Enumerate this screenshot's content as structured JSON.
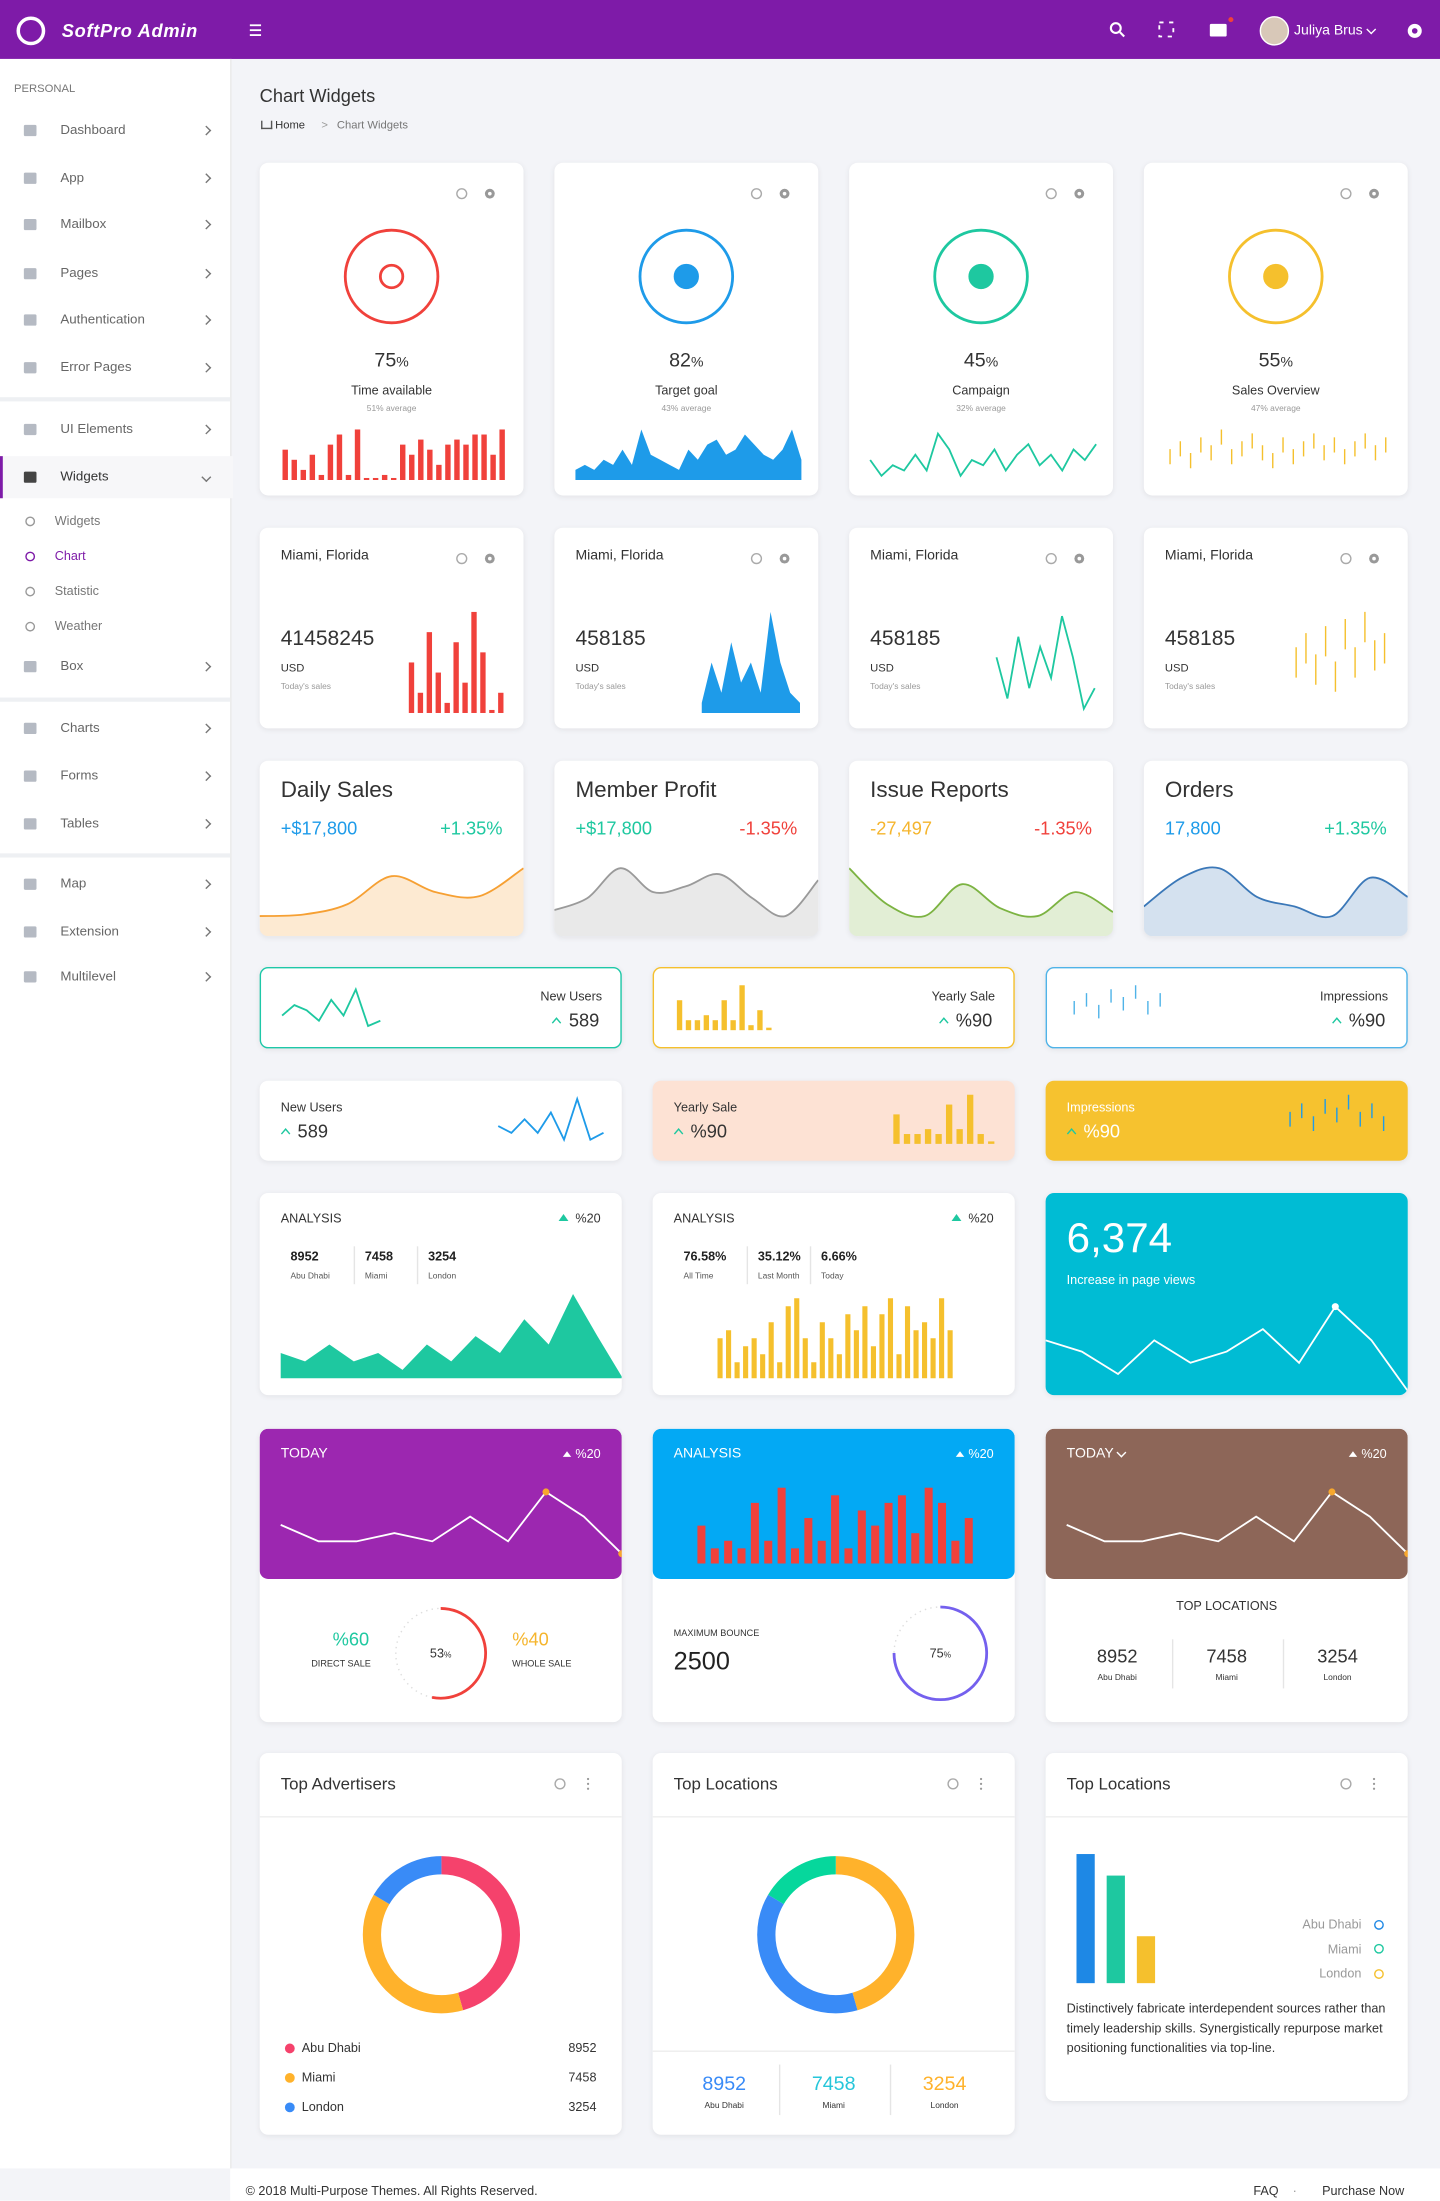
{
  "header": {
    "brand": "SoftPro Admin",
    "user": "Juliya Brus"
  },
  "sidebar": {
    "section": "PERSONAL",
    "items": [
      "Dashboard",
      "App",
      "Mailbox",
      "Pages",
      "Authentication",
      "Error Pages",
      "UI Elements",
      "Widgets",
      "Box",
      "Charts",
      "Forms",
      "Tables",
      "Map",
      "Extension",
      "Multilevel"
    ],
    "subitems": [
      "Widgets",
      "Chart",
      "Statistic",
      "Weather"
    ]
  },
  "page": {
    "title": "Chart Widgets",
    "breadcrumb": {
      "items": [
        "Home",
        "Chart Widgets"
      ],
      "separator": ">"
    }
  },
  "gauges": [
    {
      "value": 75,
      "unit": "%",
      "label": "Time available",
      "note": "51% average",
      "color": "#f0413b",
      "spark": {
        "type": "bar",
        "color": "#f0413b",
        "values": [
          6,
          4,
          2,
          5,
          1,
          7,
          9,
          1,
          10,
          0.4,
          0.4,
          1,
          0.4,
          7,
          5,
          8,
          6,
          3,
          7,
          8,
          7,
          9,
          9,
          5,
          10
        ]
      }
    },
    {
      "value": 82,
      "unit": "%",
      "label": "Target goal",
      "note": "43% average",
      "color": "#1e9be9",
      "spark": {
        "type": "area",
        "color": "#1e9be9",
        "values": [
          2,
          3,
          2,
          4,
          3,
          6,
          3,
          10,
          5,
          4,
          3,
          2,
          6,
          4,
          7,
          8,
          5,
          6,
          9,
          7,
          5,
          4,
          6,
          10,
          4
        ]
      }
    },
    {
      "value": 45,
      "unit": "%",
      "label": "Campaign",
      "note": "32% average",
      "color": "#1ec8a0",
      "spark": {
        "type": "line",
        "color": "#1ec8a0",
        "values": [
          5,
          2,
          4,
          3,
          6,
          3,
          10,
          7,
          2,
          5,
          4,
          7,
          3,
          6,
          8,
          4,
          6,
          3,
          7,
          5,
          8
        ]
      }
    },
    {
      "value": 55,
      "unit": "%",
      "label": "Sales Overview",
      "note": "47% average",
      "color": "#f5c02d",
      "spark": {
        "type": "discrete",
        "color": "#f5c02d",
        "values": [
          4,
          6,
          3,
          7,
          5,
          9,
          4,
          6,
          8,
          5,
          3,
          7,
          4,
          6,
          8,
          5,
          7,
          4,
          6,
          8,
          5,
          7
        ]
      }
    }
  ],
  "sales": [
    {
      "place": "Miami, Florida",
      "value": 41458245,
      "currency": "USD",
      "note": "Today's sales",
      "spark": {
        "type": "bar",
        "color": "#f0413b",
        "values": [
          5,
          2,
          8,
          4,
          1,
          7,
          3,
          10,
          6,
          0.3,
          2
        ]
      }
    },
    {
      "place": "Miami, Florida",
      "value": 458185,
      "currency": "USD",
      "note": "Today's sales",
      "spark": {
        "type": "area",
        "color": "#1e9be9",
        "values": [
          1,
          5,
          2,
          7,
          3,
          5,
          2,
          10,
          5,
          2,
          1
        ]
      }
    },
    {
      "place": "Miami, Florida",
      "value": 458185,
      "currency": "USD",
      "note": "Today's sales",
      "spark": {
        "type": "line",
        "color": "#1ec8a0",
        "values": [
          6,
          2,
          8,
          3,
          7,
          4,
          10,
          6,
          1,
          3
        ]
      }
    },
    {
      "place": "Miami, Florida",
      "value": 458185,
      "currency": "USD",
      "note": "Today's sales",
      "spark": {
        "type": "discrete",
        "color": "#f5c02d",
        "values": [
          5,
          7,
          4,
          8,
          3,
          9,
          5,
          10,
          6,
          7
        ]
      }
    }
  ],
  "summary": [
    {
      "title": "Daily Sales",
      "amount": "+$17,800",
      "change": "+1.35%",
      "amount_color": "#1e9be9",
      "change_color": "#1ec8a0",
      "curve": {
        "type": "curve",
        "color": "#f6a033",
        "values": [
          1,
          1.2,
          2.5,
          6,
          4,
          3.5,
          7
        ]
      }
    },
    {
      "title": "Member Profit",
      "amount": "+$17,800",
      "change": "-1.35%",
      "amount_color": "#1ec8a0",
      "change_color": "#f0413b",
      "curve": {
        "type": "curve",
        "color": "#9a9a9a",
        "values": [
          3,
          4,
          6.5,
          4.5,
          5,
          6,
          4,
          2.5,
          5.5
        ]
      }
    },
    {
      "title": "Issue Reports",
      "amount": "-27,497",
      "change": "-1.35%",
      "amount_color": "#f5b52d",
      "change_color": "#f0413b",
      "curve": {
        "type": "curve",
        "color": "#7cb342",
        "values": [
          7,
          2.5,
          1,
          5,
          2,
          1,
          4,
          1.5
        ]
      }
    },
    {
      "title": "Orders",
      "amount": "17,800",
      "change": "+1.35%",
      "amount_color": "#1e9be9",
      "change_color": "#1ec8a0",
      "curve": {
        "type": "curve",
        "color": "#3b78b8",
        "values": [
          2,
          5,
          6,
          3,
          2,
          1,
          5,
          3
        ]
      }
    }
  ],
  "stats_outline": [
    {
      "label": "New Users",
      "value": 589,
      "color": "#1ec8a8",
      "spark": {
        "type": "line",
        "color": "#1ec8a0",
        "values": [
          4,
          6,
          5,
          3,
          7,
          4,
          9,
          2,
          3
        ]
      }
    },
    {
      "label": "Yearly Sale",
      "value": "%90",
      "color": "#f5c02d",
      "spark": {
        "type": "bar",
        "color": "#f5c02d",
        "values": [
          6,
          2,
          2,
          3,
          2,
          6,
          2,
          9,
          1,
          4,
          0.5
        ]
      }
    },
    {
      "label": "Impressions",
      "value": "%90",
      "color": "#4fb3e8",
      "spark": {
        "type": "discrete",
        "color": "#4fb3e8",
        "values": [
          4,
          6,
          3,
          7,
          5,
          8,
          4,
          6
        ]
      }
    }
  ],
  "stats_filled": [
    {
      "label": "New Users",
      "value": 589,
      "background": "#ffffff",
      "text_color": "#333333",
      "spark": {
        "type": "line",
        "color": "#1e9be9",
        "values": [
          5,
          4,
          6,
          4,
          7,
          3,
          9,
          3,
          4
        ]
      }
    },
    {
      "label": "Yearly Sale",
      "value": "%90",
      "background": "#fde2d4",
      "text_color": "#333333",
      "spark": {
        "type": "bar",
        "color": "#f5c02d",
        "values": [
          6,
          2,
          2,
          3,
          2,
          8,
          3,
          10,
          2,
          0.5
        ]
      }
    },
    {
      "label": "Impressions",
      "value": "%90",
      "background": "#f6c22f",
      "text_color": "#ffffff",
      "spark": {
        "type": "discrete",
        "color": "#1e9be9",
        "values": [
          4,
          6,
          3,
          7,
          5,
          8,
          4,
          6,
          3
        ]
      }
    }
  ],
  "analysis": [
    {
      "title": "ANALYSIS",
      "change": "%20",
      "stats": [
        {
          "value": 8952,
          "label": "Abu Dhabi"
        },
        {
          "value": 7458,
          "label": "Miami"
        },
        {
          "value": 3254,
          "label": "London"
        }
      ],
      "chart": {
        "type": "area",
        "color": "#1ec8a0",
        "values": [
          3,
          2,
          4,
          2,
          3,
          1,
          4,
          2,
          5,
          3,
          7,
          4,
          10,
          5,
          0.2
        ]
      }
    },
    {
      "title": "ANALYSIS",
      "change": "%20",
      "stats": [
        {
          "value": "76.58%",
          "label": "All Time"
        },
        {
          "value": "35.12%",
          "label": "Last Month"
        },
        {
          "value": "6.66%",
          "label": "Today"
        }
      ],
      "chart": {
        "type": "bar",
        "color": "#f5c02d",
        "values": [
          5,
          6,
          2,
          4,
          5,
          3,
          7,
          2,
          9,
          10,
          5,
          2,
          7,
          5,
          3,
          8,
          6,
          9,
          4,
          8,
          10,
          3,
          9,
          6,
          7,
          5,
          10,
          6
        ]
      }
    }
  ],
  "views": {
    "value": "6,374",
    "label": "Increase in page views",
    "background": "#00bcd4",
    "chart": {
      "type": "line",
      "color": "#ffffff",
      "values": [
        5,
        4,
        2,
        5,
        3,
        4,
        6,
        3,
        8,
        5,
        0.5
      ]
    }
  },
  "today_sales": {
    "title": "TODAY",
    "change": "%20",
    "background": "#9c27b0",
    "chart": {
      "type": "line",
      "color": "#ffffff",
      "dot_color": "#f7a72d",
      "values": [
        4,
        2,
        2,
        3,
        2,
        5,
        2,
        8,
        5,
        0.5
      ]
    },
    "direct": {
      "value": "%60",
      "label": "DIRECT SALE",
      "color": "#1ec8a0"
    },
    "ratio": {
      "value": 53,
      "unit": "%",
      "color": "#f0413b"
    },
    "whole": {
      "value": "%40",
      "label": "WHOLE SALE",
      "color": "#f5b52d"
    }
  },
  "bounce": {
    "title": "ANALYSIS",
    "change": "%20",
    "background": "#03a9f4",
    "chart": {
      "type": "bar",
      "color": "#f0413b",
      "values": [
        5,
        2,
        3,
        2,
        8,
        3,
        10,
        2,
        6,
        3,
        9,
        2,
        7,
        5,
        8,
        9,
        4,
        10,
        8,
        3,
        6
      ]
    },
    "label": "MAXIMUM BOUNCE",
    "value": 2500,
    "ratio": {
      "value": 75,
      "unit": "%",
      "color": "#7460ee"
    }
  },
  "today_locations": {
    "title": "TODAY",
    "change": "%20",
    "background": "#8d6658",
    "chart": {
      "type": "line",
      "color": "#ffffff",
      "dot_color": "#f7a72d",
      "values": [
        4,
        2,
        2,
        3,
        2,
        5,
        2,
        8,
        5,
        0.5
      ]
    },
    "heading": "TOP LOCATIONS",
    "stats": [
      {
        "value": 8952,
        "label": "Abu Dhabi"
      },
      {
        "value": 7458,
        "label": "Miami"
      },
      {
        "value": 3254,
        "label": "London"
      }
    ]
  },
  "advertisers": {
    "title": "Top Advertisers",
    "items": [
      {
        "name": "Abu Dhabi",
        "value": 8952,
        "color": "#f5426c"
      },
      {
        "name": "Miami",
        "value": 7458,
        "color": "#ffb22b"
      },
      {
        "name": "London",
        "value": 3254,
        "color": "#398bf7"
      }
    ]
  },
  "locations_donut": {
    "title": "Top Locations",
    "items": [
      {
        "name": "Abu Dhabi",
        "value": 8952,
        "color": "#398bf7"
      },
      {
        "name": "Miami",
        "value": 7458,
        "color": "#26c6da"
      },
      {
        "name": "London",
        "value": 3254,
        "color": "#ffb22b"
      }
    ],
    "ring_colors": [
      "#ffb22b",
      "#398bf7",
      "#06d79c"
    ]
  },
  "locations_bars": {
    "title": "Top Locations",
    "items": [
      {
        "name": "Abu Dhabi",
        "value": 8952,
        "color": "#1e88e5"
      },
      {
        "name": "Miami",
        "value": 7458,
        "color": "#1ec8a0"
      },
      {
        "name": "London",
        "value": 3254,
        "color": "#f5c02d"
      }
    ],
    "text": "Distinctively fabricate interdependent sources rather than timely leadership skills. Synergistically repurpose market positioning functionalities via top-line."
  },
  "footer": {
    "copyright": "© 2018 Multi-Purpose Themes. All Rights Reserved.",
    "links": [
      "FAQ",
      "Purchase Now"
    ],
    "separator": "·"
  }
}
